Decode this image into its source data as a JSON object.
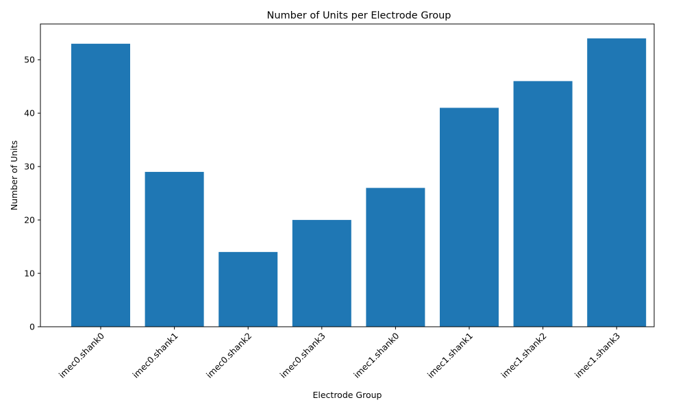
{
  "chart_data": {
    "type": "bar",
    "title": "Number of Units per Electrode Group",
    "xlabel": "Electrode Group",
    "ylabel": "Number of Units",
    "categories": [
      "imec0.shank0",
      "imec0.shank1",
      "imec0.shank2",
      "imec0.shank3",
      "imec1.shank0",
      "imec1.shank1",
      "imec1.shank2",
      "imec1.shank3"
    ],
    "values": [
      53,
      29,
      14,
      20,
      26,
      41,
      46,
      54
    ],
    "ylim": [
      0,
      56.7
    ],
    "yticks": [
      0,
      10,
      20,
      30,
      40,
      50
    ],
    "x_tick_rotation_deg": 45,
    "grid": false,
    "legend": "none",
    "bar_color": "#1f77b4"
  }
}
